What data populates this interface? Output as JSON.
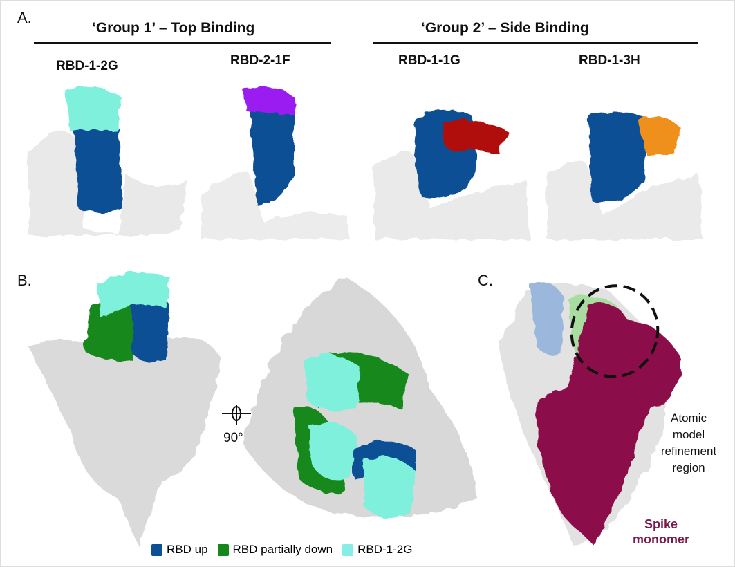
{
  "panels": {
    "a": "A.",
    "b": "B.",
    "c": "C."
  },
  "groups": [
    {
      "title": "‘Group 1’ – Top Binding"
    },
    {
      "title": "‘Group 2’ – Side Binding"
    }
  ],
  "antibodies": [
    {
      "name": "RBD-1-2G",
      "color": "#7ff0dc"
    },
    {
      "name": "RBD-2-1F",
      "color": "#9a1ff0"
    },
    {
      "name": "RBD-1-1G",
      "color": "#b01010"
    },
    {
      "name": "RBD-1-3H",
      "color": "#f0901a"
    }
  ],
  "rotation_label": "90°",
  "annotation": "Atomic model refinement region",
  "annotation_lines": [
    "Atomic",
    "model",
    "refinement",
    "region"
  ],
  "spike_label_lines": [
    "Spike",
    "monomer"
  ],
  "legend": [
    {
      "label": "RBD up",
      "color": "#0d4f94"
    },
    {
      "label": "RBD partially down",
      "color": "#14881a"
    },
    {
      "label": "RBD-1-2G",
      "color": "#86eee6"
    }
  ],
  "colors": {
    "rbd": "#0d4f94",
    "spike": "#8b0f4a",
    "spike_label": "#7a1a4a",
    "map": "#e4e4e4"
  }
}
